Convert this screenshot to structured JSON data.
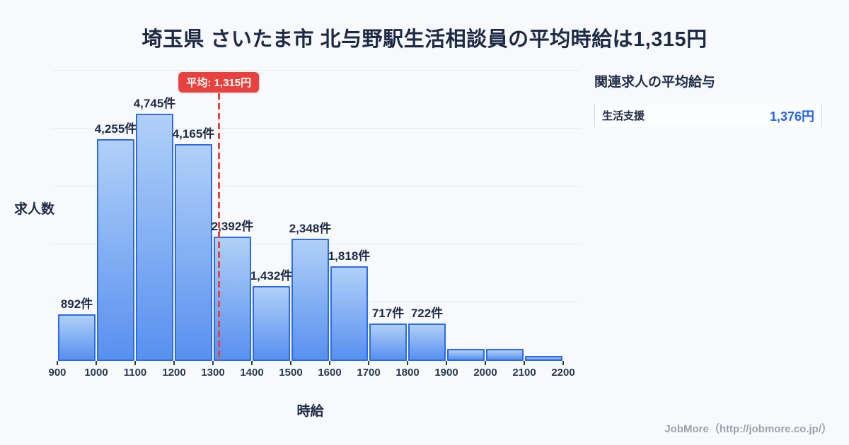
{
  "chart_data": {
    "type": "bar",
    "title": "埼玉県 さいたま市 北与野駅生活相談員の平均時給は1,315円",
    "xlabel": "時給",
    "ylabel": "求人数",
    "x_tick_labels": [
      "900",
      "1000",
      "1100",
      "1200",
      "1300",
      "1400",
      "1500",
      "1600",
      "1700",
      "1800",
      "1900",
      "2000",
      "2100",
      "2200"
    ],
    "x_range": [
      900,
      2200
    ],
    "bin_width": 100,
    "categories": [
      "900-1000",
      "1000-1100",
      "1100-1200",
      "1200-1300",
      "1300-1400",
      "1400-1500",
      "1500-1600",
      "1600-1700",
      "1700-1800",
      "1800-1900",
      "1900-2000",
      "2000-2100",
      "2100-2200"
    ],
    "values": [
      892,
      4255,
      4745,
      4165,
      2392,
      1432,
      2348,
      1818,
      717,
      722,
      230,
      225,
      90
    ],
    "bar_labels": [
      "892件",
      "4,255件",
      "4,745件",
      "4,165件",
      "2,392件",
      "1,432件",
      "2,348件",
      "1,818件",
      "717件",
      "722件",
      "",
      "",
      ""
    ],
    "unit": "件",
    "ylim": [
      0,
      4800
    ],
    "grid": true,
    "average_line": {
      "value": 1315,
      "label": "平均: 1,315円"
    }
  },
  "side_panel": {
    "title": "関連求人の平均給与",
    "rows": [
      {
        "label": "生活支援",
        "value": "1,376円"
      }
    ]
  },
  "footer": {
    "credit": "JobMore（http://jobmore.co.jp/）"
  },
  "colors": {
    "background": "#f7f9fc",
    "bar_fill_top": "#b0d0f7",
    "bar_fill_bottom": "#5890f0",
    "bar_border": "#2b6be8",
    "average_red": "#e8423e",
    "value_blue": "#2563eb",
    "text_dark": "#1f2b45",
    "grid_line": "#e8ecf3",
    "footer_gray": "#9aa3ae"
  }
}
